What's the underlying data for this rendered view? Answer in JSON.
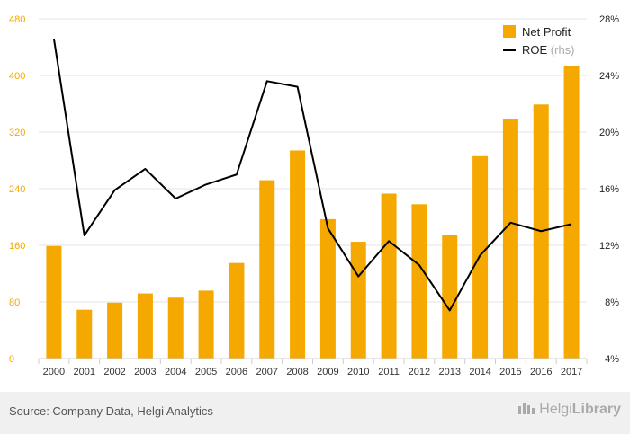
{
  "chart_data": {
    "type": "bar",
    "categories": [
      "2000",
      "2001",
      "2002",
      "2003",
      "2004",
      "2005",
      "2006",
      "2007",
      "2008",
      "2009",
      "2010",
      "2011",
      "2012",
      "2013",
      "2014",
      "2015",
      "2016",
      "2017"
    ],
    "series": [
      {
        "name": "Net Profit",
        "type": "bar",
        "axis": "left",
        "color": "#f5a800",
        "values": [
          159,
          69,
          79,
          92,
          86,
          96,
          135,
          252,
          294,
          197,
          165,
          233,
          218,
          175,
          286,
          339,
          359,
          414
        ]
      },
      {
        "name": "ROE",
        "legend_suffix": "(rhs)",
        "type": "line",
        "axis": "right",
        "color": "#000000",
        "values": [
          26.6,
          12.7,
          15.9,
          17.4,
          15.3,
          16.3,
          17.0,
          23.6,
          23.2,
          13.2,
          9.8,
          12.3,
          10.6,
          7.4,
          11.3,
          13.6,
          13.0,
          13.5
        ]
      }
    ],
    "y_left": {
      "min": 0,
      "max": 480,
      "ticks": [
        "0",
        "80",
        "160",
        "240",
        "320",
        "400",
        "480"
      ]
    },
    "y_right": {
      "min": 4,
      "max": 28,
      "ticks": [
        "4%",
        "8%",
        "12%",
        "16%",
        "20%",
        "24%",
        "28%"
      ]
    },
    "grid": true,
    "legend": "top-right",
    "colors": {
      "left_axis_text": "#f5a800",
      "right_axis_text": "#222222",
      "grid": "#e3e3e3"
    }
  },
  "footer": {
    "source": "Source: Company Data, Helgi Analytics",
    "brand_light": "Helgi",
    "brand_bold": "Library"
  }
}
